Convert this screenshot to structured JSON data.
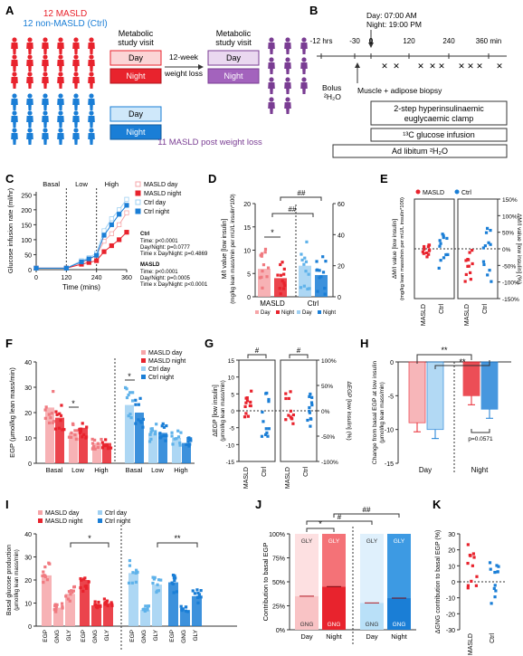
{
  "panel_letters": [
    "A",
    "B",
    "C",
    "D",
    "E",
    "F",
    "G",
    "H",
    "I",
    "J",
    "K"
  ],
  "colors": {
    "masld_red": "#e8232d",
    "masld_red_light": "#f6a5a8",
    "ctrl_blue": "#1a7ed6",
    "ctrl_blue_light": "#9fd0f2",
    "weightloss_purple": "#7a3d93",
    "purple_light": "#dcc2e6",
    "grey": "#555555"
  },
  "panelA": {
    "masld_label": "12 MASLD",
    "ctrl_label": "12 non-MASLD (Ctrl)",
    "visit_label_1": "Metabolic",
    "visit_label_2": "study visit",
    "day": "Day",
    "night": "Night",
    "arrow_label_1": "12-week",
    "arrow_label_2": "weight loss",
    "post_label": "11 MASLD post weight loss"
  },
  "panelB": {
    "day_time": "Day:        07:00 AM",
    "night_time": "Night:    19:00 PM",
    "ticks": [
      "-12 hrs",
      "-30",
      "0",
      "120",
      "240",
      "360 min"
    ],
    "bolus_1": "Bolus",
    "bolus_2": "²H₂O",
    "biopsy": "Muscle + adipose biopsy",
    "clamp_1": "2-step hyperinsulinaemic",
    "clamp_2": "euglycaemic clamp",
    "glucose": "¹³C glucose infusion",
    "ad_lib": "Ad libitum ²H₂O",
    "x_mark": "✕"
  },
  "panelC": {
    "ylabel": "Glucose infusion rate (ml/hr)",
    "xlabel": "Time (mins)",
    "phase_labels": [
      "Basal",
      "Low",
      "High"
    ],
    "legend": [
      "MASLD day",
      "MASLD night",
      "Ctrl day",
      "Ctrl night"
    ],
    "stats": {
      "ctrl_title": "Ctrl",
      "ctrl_1": "Time: p<0.0001",
      "ctrl_2": "Day/Night: p=0.0777",
      "ctrl_3": "Time x Day/Night: p=0.4869",
      "masld_title": "MASLD",
      "masld_1": "Time: p<0.0001",
      "masld_2": "Day/Night: p=0.0005",
      "masld_3": "Time x Day/Night: p<0.0001"
    },
    "chart_data": {
      "type": "line",
      "x": [
        0,
        120,
        180,
        210,
        240,
        270,
        300,
        330,
        360
      ],
      "xticks": [
        "0",
        "120",
        "240",
        "360"
      ],
      "yticks": [
        "0",
        "50",
        "100",
        "150",
        "200",
        "250"
      ],
      "ylim": [
        0,
        260
      ],
      "series": [
        {
          "name": "MASLD day",
          "values": [
            5,
            5,
            25,
            33,
            48,
            95,
            120,
            150,
            190
          ]
        },
        {
          "name": "MASLD night",
          "values": [
            5,
            5,
            18,
            24,
            30,
            60,
            80,
            100,
            125
          ]
        },
        {
          "name": "Ctrl day",
          "values": [
            5,
            5,
            30,
            40,
            55,
            130,
            170,
            200,
            235
          ]
        },
        {
          "name": "Ctrl night",
          "values": [
            5,
            5,
            26,
            36,
            48,
            115,
            150,
            185,
            215
          ]
        }
      ]
    }
  },
  "panelD": {
    "ylabel_1": "M/I value [low insulin]",
    "ylabel_2": "(mg/kg lean mass/min per mU/L insulin*100)",
    "groups": [
      "MASLD",
      "Ctrl"
    ],
    "legend": [
      "Day",
      "Night",
      "Day",
      "Night"
    ],
    "sig_masld": "*",
    "sig_between_1": "##",
    "sig_between_2": "##",
    "chart_data": {
      "type": "bar",
      "categories": [
        "MASLD day",
        "MASLD night",
        "Ctrl day",
        "Ctrl night"
      ],
      "values": [
        6,
        4,
        20,
        14
      ],
      "left_ylim": [
        0,
        20
      ],
      "left_yticks": [
        "0",
        "5",
        "10",
        "15",
        "20"
      ],
      "right_ylim": [
        0,
        60
      ],
      "right_yticks": [
        "0",
        "20",
        "40",
        "60"
      ]
    }
  },
  "panelE": {
    "ylabel_1": "ΔM/I value [low insulin]",
    "ylabel_2": "(mg/kg lean mass/min per mU/L insulin*100)",
    "ylabel_right": "ΔM/I value [low insulin] (%)",
    "legend": [
      "MASLD",
      "Ctrl"
    ],
    "xlabels": [
      "MASLD",
      "Ctrl",
      "MASLD",
      "Ctrl"
    ],
    "chart_data": {
      "type": "scatter",
      "right_yticks": [
        "150%",
        "100%",
        "50%",
        "0%",
        "-50%",
        "-100%",
        "-150%"
      ]
    }
  },
  "panelF": {
    "ylabel": "EGP (μmol/kg lean mass/min)",
    "xlabels": [
      "Basal",
      "Low",
      "High",
      "Basal",
      "Low",
      "High"
    ],
    "legend": [
      "MASLD day",
      "MASLD night",
      "Ctrl day",
      "Ctrl night"
    ],
    "sig": "*",
    "chart_data": {
      "type": "bar",
      "categories": [
        "Basal",
        "Low",
        "High"
      ],
      "series": [
        {
          "name": "MASLD day",
          "values": [
            22,
            12,
            8
          ]
        },
        {
          "name": "MASLD night",
          "values": [
            18,
            14,
            8
          ]
        },
        {
          "name": "Ctrl day",
          "values": [
            23,
            12,
            10
          ]
        },
        {
          "name": "Ctrl night",
          "values": [
            20,
            12,
            8
          ]
        }
      ],
      "yticks": [
        "0",
        "10",
        "20",
        "30",
        "40"
      ],
      "ylim": [
        0,
        40
      ]
    }
  },
  "panelG": {
    "ylabel_1": "ΔEGP [low insulin]",
    "ylabel_2": "(μmol/kg lean mass/min)",
    "ylabel_right": "ΔEGP [low insulin] (%)",
    "xlabels": [
      "MASLD",
      "Ctrl",
      "MASLD",
      "Ctrl"
    ],
    "sig": "#",
    "chart_data": {
      "type": "scatter",
      "yticks": [
        "-15",
        "-10",
        "-5",
        "0",
        "5",
        "10",
        "15"
      ],
      "right_yticks": [
        "100%",
        "50%",
        "0%",
        "-50%",
        "-100%"
      ]
    }
  },
  "panelH": {
    "ylabel_1": "Change from basal EGP at low insulin",
    "ylabel_2": "(μmol/kg lean mass/min)",
    "xlabels": [
      "Day",
      "Night"
    ],
    "sig": "**",
    "pval": "p=0.0571",
    "chart_data": {
      "type": "bar",
      "categories": [
        "Day",
        "Night"
      ],
      "series": [
        {
          "name": "MASLD",
          "values": [
            -9,
            -5
          ]
        },
        {
          "name": "Ctrl",
          "values": [
            -10,
            -7
          ]
        }
      ],
      "yticks": [
        "0",
        "-5",
        "-10",
        "-15"
      ],
      "ylim": [
        -15,
        0
      ]
    }
  },
  "panelI": {
    "ylabel_1": "Basal glucose production",
    "ylabel_2": "(μmol/kg lean mass/min)",
    "legend": [
      "MASLD day",
      "MASLD night",
      "Ctrl day",
      "Ctrl night"
    ],
    "xlabels": [
      "EGP",
      "GNG",
      "GLY",
      "EGP",
      "GNG",
      "GLY",
      "EGP",
      "GNG",
      "GLY",
      "EGP",
      "GNG",
      "GLY"
    ],
    "sig_1": "*",
    "sig_2": "**",
    "chart_data": {
      "type": "bar",
      "categories": [
        "EGP",
        "GNG",
        "GLY"
      ],
      "series": [
        {
          "name": "MASLD day",
          "values": [
            22,
            8,
            14
          ]
        },
        {
          "name": "MASLD night",
          "values": [
            20,
            9,
            10
          ]
        },
        {
          "name": "Ctrl day",
          "values": [
            23,
            7,
            18
          ]
        },
        {
          "name": "Ctrl night",
          "values": [
            19,
            7,
            13
          ]
        }
      ],
      "yticks": [
        "0",
        "10",
        "20",
        "30",
        "40"
      ],
      "ylim": [
        0,
        40
      ]
    }
  },
  "panelJ": {
    "ylabel": "Contribution to basal EGP",
    "xlabels": [
      "Day",
      "Night",
      "Day",
      "Night"
    ],
    "segment_top": "GLY",
    "segment_bottom": "GNG",
    "sig_1": "*",
    "sig_2": "#",
    "sig_3": "##",
    "chart_data": {
      "type": "bar",
      "categories": [
        "MASLD day",
        "MASLD night",
        "Ctrl day",
        "Ctrl night"
      ],
      "gng_percent": [
        35,
        45,
        28,
        33
      ],
      "yticks": [
        "0%",
        "25%",
        "50%",
        "75%",
        "100%"
      ],
      "ylim": [
        0,
        100
      ]
    }
  },
  "panelK": {
    "ylabel": "ΔGNG contribution to basal EGP (%)",
    "xlabels": [
      "MASLD",
      "Ctrl"
    ],
    "chart_data": {
      "type": "scatter",
      "yticks": [
        "-30",
        "-20",
        "-10",
        "0",
        "10",
        "20",
        "30"
      ],
      "ylim": [
        -30,
        30
      ]
    }
  }
}
